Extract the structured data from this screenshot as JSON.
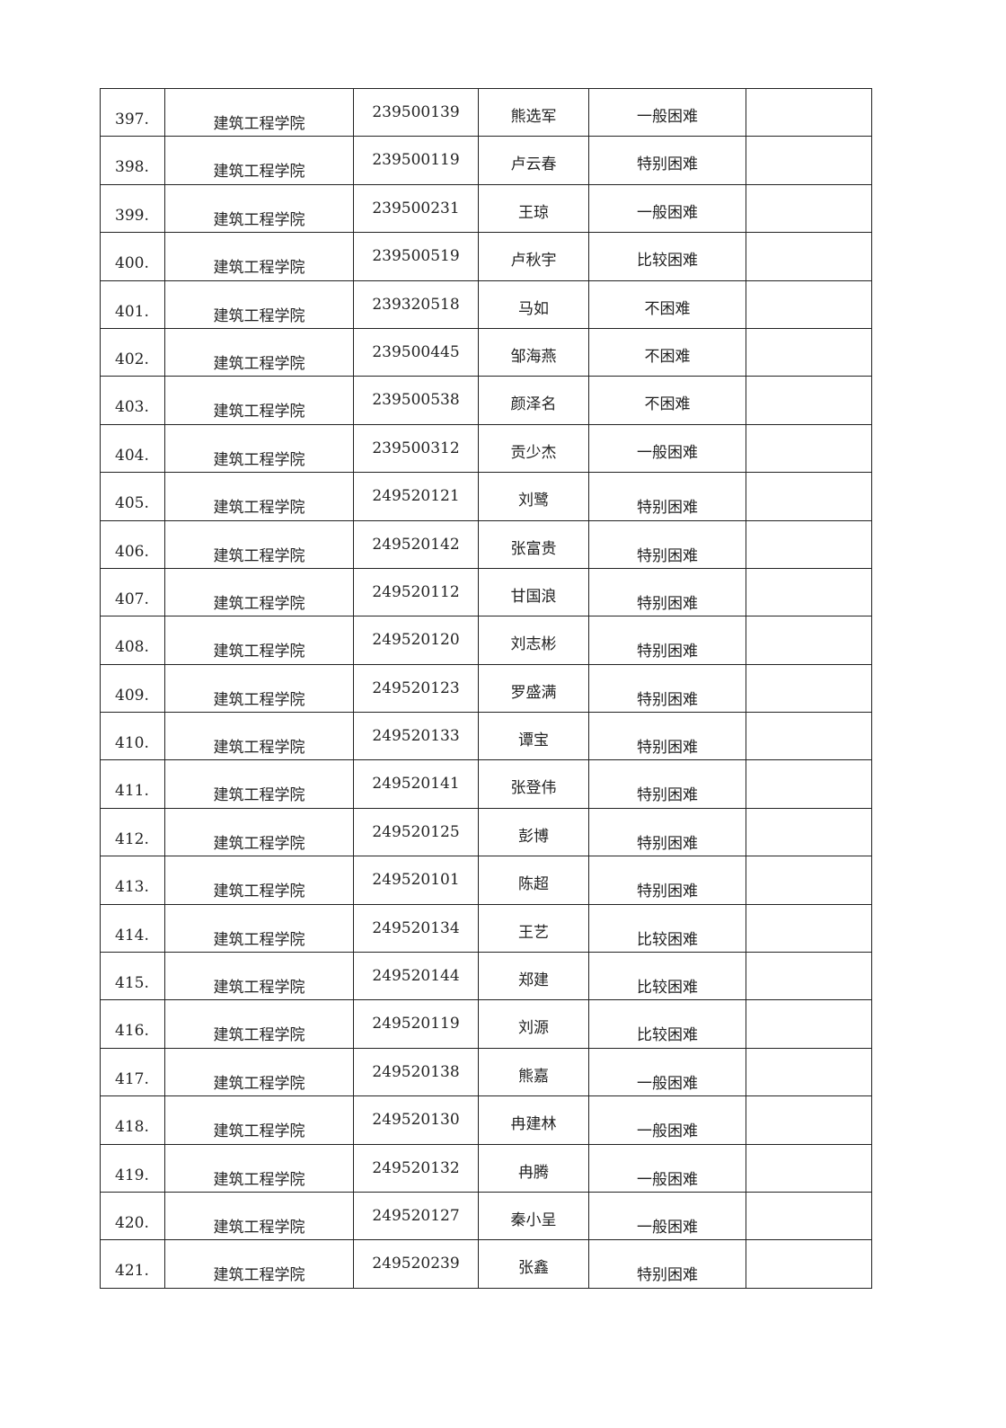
{
  "rows": [
    {
      "no": "397.",
      "college": "建筑工程学院",
      "id": "239500139",
      "name": "熊选军",
      "level": "一般困难",
      "note": ""
    },
    {
      "no": "398.",
      "college": "建筑工程学院",
      "id": "239500119",
      "name": "卢云春",
      "level": "特别困难",
      "note": ""
    },
    {
      "no": "399.",
      "college": "建筑工程学院",
      "id": "239500231",
      "name": "王琼",
      "level": "一般困难",
      "note": ""
    },
    {
      "no": "400.",
      "college": "建筑工程学院",
      "id": "239500519",
      "name": "卢秋宇",
      "level": "比较困难",
      "note": ""
    },
    {
      "no": "401.",
      "college": "建筑工程学院",
      "id": "239320518",
      "name": "马如",
      "level": "不困难",
      "note": ""
    },
    {
      "no": "402.",
      "college": "建筑工程学院",
      "id": "239500445",
      "name": "邹海燕",
      "level": "不困难",
      "note": ""
    },
    {
      "no": "403.",
      "college": "建筑工程学院",
      "id": "239500538",
      "name": "颜泽名",
      "level": "不困难",
      "note": ""
    },
    {
      "no": "404.",
      "college": "建筑工程学院",
      "id": "239500312",
      "name": "贡少杰",
      "level": "一般困难",
      "note": ""
    },
    {
      "no": "405.",
      "college": "建筑工程学院",
      "id": "249520121",
      "name": "刘鹭",
      "level": "特别困难",
      "note": ""
    },
    {
      "no": "406.",
      "college": "建筑工程学院",
      "id": "249520142",
      "name": "张富贵",
      "level": "特别困难",
      "note": ""
    },
    {
      "no": "407.",
      "college": "建筑工程学院",
      "id": "249520112",
      "name": "甘国浪",
      "level": "特别困难",
      "note": ""
    },
    {
      "no": "408.",
      "college": "建筑工程学院",
      "id": "249520120",
      "name": "刘志彬",
      "level": "特别困难",
      "note": ""
    },
    {
      "no": "409.",
      "college": "建筑工程学院",
      "id": "249520123",
      "name": "罗盛满",
      "level": "特别困难",
      "note": ""
    },
    {
      "no": "410.",
      "college": "建筑工程学院",
      "id": "249520133",
      "name": "谭宝",
      "level": "特别困难",
      "note": ""
    },
    {
      "no": "411.",
      "college": "建筑工程学院",
      "id": "249520141",
      "name": "张登伟",
      "level": "特别困难",
      "note": ""
    },
    {
      "no": "412.",
      "college": "建筑工程学院",
      "id": "249520125",
      "name": "彭博",
      "level": "特别困难",
      "note": ""
    },
    {
      "no": "413.",
      "college": "建筑工程学院",
      "id": "249520101",
      "name": "陈超",
      "level": "特别困难",
      "note": ""
    },
    {
      "no": "414.",
      "college": "建筑工程学院",
      "id": "249520134",
      "name": "王艺",
      "level": "比较困难",
      "note": ""
    },
    {
      "no": "415.",
      "college": "建筑工程学院",
      "id": "249520144",
      "name": "郑建",
      "level": "比较困难",
      "note": ""
    },
    {
      "no": "416.",
      "college": "建筑工程学院",
      "id": "249520119",
      "name": "刘源",
      "level": "比较困难",
      "note": ""
    },
    {
      "no": "417.",
      "college": "建筑工程学院",
      "id": "249520138",
      "name": "熊嘉",
      "level": "一般困难",
      "note": ""
    },
    {
      "no": "418.",
      "college": "建筑工程学院",
      "id": "249520130",
      "name": "冉建林",
      "level": "一般困难",
      "note": ""
    },
    {
      "no": "419.",
      "college": "建筑工程学院",
      "id": "249520132",
      "name": "冉腾",
      "level": "一般困难",
      "note": ""
    },
    {
      "no": "420.",
      "college": "建筑工程学院",
      "id": "249520127",
      "name": "秦小呈",
      "level": "一般困难",
      "note": ""
    },
    {
      "no": "421.",
      "college": "建筑工程学院",
      "id": "249520239",
      "name": "张鑫",
      "level": "特别困难",
      "note": ""
    }
  ]
}
